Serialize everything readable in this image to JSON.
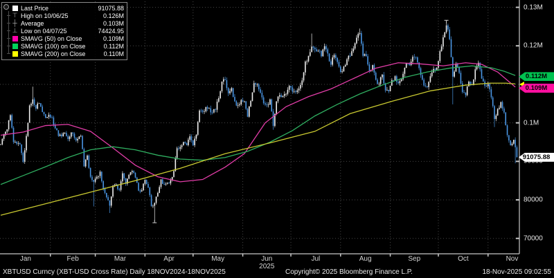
{
  "accent_colors": {
    "sma50": "#e23da8",
    "sma50_swatch": "#ff00aa",
    "sma100": "#2fae60",
    "sma100_swatch": "#00d25a",
    "sma200": "#c9c930",
    "sma200_swatch": "#ffff00",
    "up_candle": "#f0f0f0",
    "down_candle": "#4a96e4",
    "grid": "#474747",
    "axis": "#c8c8c8",
    "badge_green": "#00c150",
    "badge_magenta": "#ff0f9f",
    "badge_white": "#ffffff"
  },
  "legend": {
    "rows": [
      {
        "icon": "last-price-square",
        "label": "Last Price",
        "value": "91075.88"
      },
      {
        "icon": "high-marker",
        "label": "High on 10/06/25",
        "value": "0.126M"
      },
      {
        "icon": "average-marker",
        "label": "Average",
        "value": "0.103M"
      },
      {
        "icon": "low-marker",
        "label": "Low on 04/07/25",
        "value": "74424.95"
      },
      {
        "icon": "swatch",
        "color": "#ff00aa",
        "label": "SMAVG (50)  on Close",
        "value": "0.109M"
      },
      {
        "icon": "swatch",
        "color": "#00d25a",
        "label": "SMAVG (100)  on Close",
        "value": "0.112M"
      },
      {
        "icon": "swatch",
        "color": "#ffff00",
        "label": "SMAVG (200)  on Close",
        "value": "0.110M"
      }
    ]
  },
  "y_axis": {
    "ticks": [
      {
        "value": 130000,
        "label": "0.13M"
      },
      {
        "value": 120000,
        "label": "0.12M"
      },
      {
        "value": 100000,
        "label": "0.1M"
      },
      {
        "value": 90000,
        "label": "90000"
      },
      {
        "value": 80000,
        "label": "80000"
      },
      {
        "value": 70000,
        "label": "70000"
      }
    ],
    "gridline_values": [
      130000,
      120000,
      110000,
      100000,
      90000,
      80000,
      70000
    ],
    "badges": [
      {
        "text": "0.112M",
        "value": 112000,
        "color": "#00c150",
        "text_color": "#000000"
      },
      {
        "text": "0.109M",
        "value": 109000,
        "color": "#ff0f9f",
        "text_color": "#000000"
      },
      {
        "text": "91075.88",
        "value": 91076,
        "color": "#ffffff",
        "text_color": "#000000"
      }
    ]
  },
  "x_axis": {
    "months": [
      "Jan",
      "Feb",
      "Mar",
      "Apr",
      "May",
      "Jun",
      "Jul",
      "Aug",
      "Sep",
      "Oct",
      "Nov"
    ],
    "month_start_days": [
      0,
      31,
      59,
      90,
      120,
      151,
      181,
      212,
      243,
      273,
      304
    ],
    "last_day": 321,
    "year_label": "2025",
    "year_label_month_index": 5
  },
  "footer": {
    "left": "XBTUSD Curncy (XBT-USD Cross Rate) Daily 18NOV2024-18NOV2025",
    "center": "Copyright© 2025 Bloomberg Finance L.P.",
    "right": "18-Nov-2025 09:02:55"
  },
  "chart_data": {
    "type": "candlestick",
    "title": "XBTUSD Curncy (XBT-USD Cross Rate) Daily",
    "instrument": "XBTUSD",
    "period": "18NOV2024-18NOV2025",
    "visible_x_range": "01 Jan 2025 - 18 Nov 2025",
    "ylim": [
      66000,
      131000
    ],
    "last_price": 91075.88,
    "high": {
      "day": 278,
      "price": 126272,
      "date": "10/06/25"
    },
    "low": {
      "day": 96,
      "price": 74424.95,
      "date": "04/07/25"
    },
    "average": 103000,
    "sample_step_days": 2,
    "closes": [
      94400,
      97100,
      98300,
      102000,
      95000,
      94600,
      94400,
      89900,
      96600,
      104500,
      106100,
      103700,
      105100,
      102800,
      101300,
      102100,
      101400,
      98600,
      96600,
      96500,
      97400,
      95800,
      97500,
      96100,
      95800,
      96600,
      88700,
      91500,
      86000,
      84700,
      86000,
      87300,
      82900,
      80700,
      78500,
      83700,
      84000,
      82600,
      86900,
      84200,
      86500,
      87500,
      85800,
      82400,
      82500,
      85200,
      83200,
      78400,
      79200,
      81800,
      85300,
      84000,
      84400,
      85100,
      87500,
      93400,
      93700,
      95000,
      94200,
      96500,
      94200,
      96900,
      103200,
      102900,
      104100,
      103800,
      102700,
      103400,
      106400,
      110700,
      111100,
      107700,
      109000,
      105600,
      104600,
      105900,
      105600,
      101600,
      105700,
      110300,
      110000,
      107800,
      105100,
      104600,
      106100,
      99200,
      105600,
      107200,
      107000,
      107500,
      109600,
      108100,
      108000,
      108900,
      111000,
      115900,
      117400,
      119800,
      119100,
      118700,
      117300,
      119900,
      118000,
      115100,
      117600,
      115800,
      113200,
      114600,
      116500,
      117400,
      119300,
      122100,
      123300,
      117400,
      117300,
      113500,
      115000,
      111200,
      110100,
      112500,
      108400,
      108200,
      111100,
      112100,
      110300,
      111300,
      114300,
      115400,
      115900,
      117100,
      115700,
      112400,
      109700,
      109300,
      112100,
      114000,
      114300,
      118600,
      122200,
      125300,
      121700,
      112000,
      115300,
      113000,
      108000,
      107200,
      110700,
      109800,
      113900,
      115600,
      111500,
      109600,
      110100,
      106600,
      101000,
      103600,
      105400,
      102700,
      96800,
      94200,
      95600,
      91076
    ],
    "wick_overrides": {
      "20": {
        "high": 109400
      },
      "58": {
        "low": 78300
      },
      "68": {
        "low": 76600
      },
      "96": {
        "low": 74425
      },
      "140": {
        "high": 112000
      },
      "170": {
        "low": 98200
      },
      "194": {
        "high": 123200
      },
      "224": {
        "high": 124500
      },
      "278": {
        "high": 126272
      },
      "282": {
        "low": 104800
      },
      "308": {
        "low": 98900
      },
      "321": {
        "low": 89500
      }
    },
    "series": [
      {
        "name": "SMAVG (50) on Close",
        "color": "#e23da8",
        "last": 109000,
        "points": [
          [
            0,
            96800
          ],
          [
            14,
            97600
          ],
          [
            28,
            99300
          ],
          [
            42,
            99600
          ],
          [
            56,
            97800
          ],
          [
            70,
            93500
          ],
          [
            84,
            89000
          ],
          [
            98,
            86000
          ],
          [
            112,
            84700
          ],
          [
            126,
            85300
          ],
          [
            140,
            88500
          ],
          [
            152,
            92000
          ],
          [
            165,
            100000
          ],
          [
            178,
            104200
          ],
          [
            192,
            106800
          ],
          [
            206,
            108800
          ],
          [
            220,
            111500
          ],
          [
            234,
            114200
          ],
          [
            248,
            115600
          ],
          [
            262,
            115300
          ],
          [
            276,
            114800
          ],
          [
            290,
            115600
          ],
          [
            300,
            115200
          ],
          [
            310,
            113200
          ],
          [
            321,
            109300
          ]
        ]
      },
      {
        "name": "SMAVG (100) on Close",
        "color": "#2fae60",
        "last": 112000,
        "points": [
          [
            0,
            84000
          ],
          [
            14,
            86300
          ],
          [
            28,
            88600
          ],
          [
            42,
            91000
          ],
          [
            56,
            93000
          ],
          [
            70,
            93800
          ],
          [
            84,
            93000
          ],
          [
            98,
            91600
          ],
          [
            112,
            90600
          ],
          [
            126,
            90300
          ],
          [
            140,
            91000
          ],
          [
            154,
            92600
          ],
          [
            168,
            95000
          ],
          [
            182,
            98000
          ],
          [
            196,
            101800
          ],
          [
            210,
            104800
          ],
          [
            224,
            107500
          ],
          [
            238,
            109800
          ],
          [
            252,
            111800
          ],
          [
            266,
            113200
          ],
          [
            280,
            114200
          ],
          [
            294,
            114800
          ],
          [
            306,
            114300
          ],
          [
            314,
            113400
          ],
          [
            321,
            112300
          ]
        ]
      },
      {
        "name": "SMAVG (200) on Close",
        "color": "#c9c930",
        "last": 110000,
        "points": [
          [
            0,
            76000
          ],
          [
            28,
            79000
          ],
          [
            56,
            82000
          ],
          [
            84,
            85000
          ],
          [
            112,
            88200
          ],
          [
            140,
            92000
          ],
          [
            168,
            94800
          ],
          [
            196,
            97800
          ],
          [
            218,
            102400
          ],
          [
            244,
            105600
          ],
          [
            268,
            108300
          ],
          [
            290,
            109800
          ],
          [
            305,
            110300
          ],
          [
            315,
            110300
          ],
          [
            321,
            110100
          ]
        ]
      }
    ]
  }
}
